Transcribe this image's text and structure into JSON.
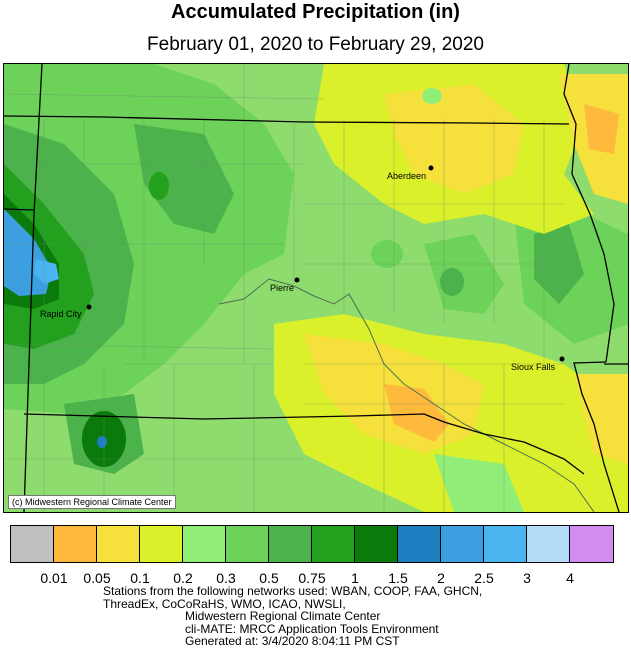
{
  "title": "Accumulated Precipitation (in)",
  "subtitle": "February 01, 2020 to February 29, 2020",
  "credit": "(c) Midwestern Regional Climate Center",
  "cities": [
    {
      "name": "Aberdeen"
    },
    {
      "name": "Pierre"
    },
    {
      "name": "Rapid City"
    },
    {
      "name": "Sioux Falls"
    }
  ],
  "legend": {
    "colors": [
      "#c0c0c0",
      "#ffb93c",
      "#f5e03c",
      "#d9f02a",
      "#90ee78",
      "#6cd25a",
      "#4cb24c",
      "#22a01e",
      "#0a7a0a",
      "#1e7fc0",
      "#3ca0e0",
      "#4ab4f0",
      "#b4dcf8",
      "#d28cf0"
    ],
    "labels": [
      "0.01",
      "0.05",
      "0.1",
      "0.2",
      "0.3",
      "0.5",
      "0.75",
      "1",
      "1.5",
      "2",
      "2.5",
      "3",
      "4"
    ]
  },
  "footer": {
    "line1": "Stations from the following networks used: WBAN, COOP, FAA, GHCN,",
    "line2": "ThreadEx, CoCoRaHS, WMO, ICAO, NWSLI,",
    "line3": "Midwestern Regional Climate Center",
    "line4": "cli-MATE: MRCC Application Tools Environment",
    "line5": "Generated at: 3/4/2020 8:04:11 PM CST"
  }
}
